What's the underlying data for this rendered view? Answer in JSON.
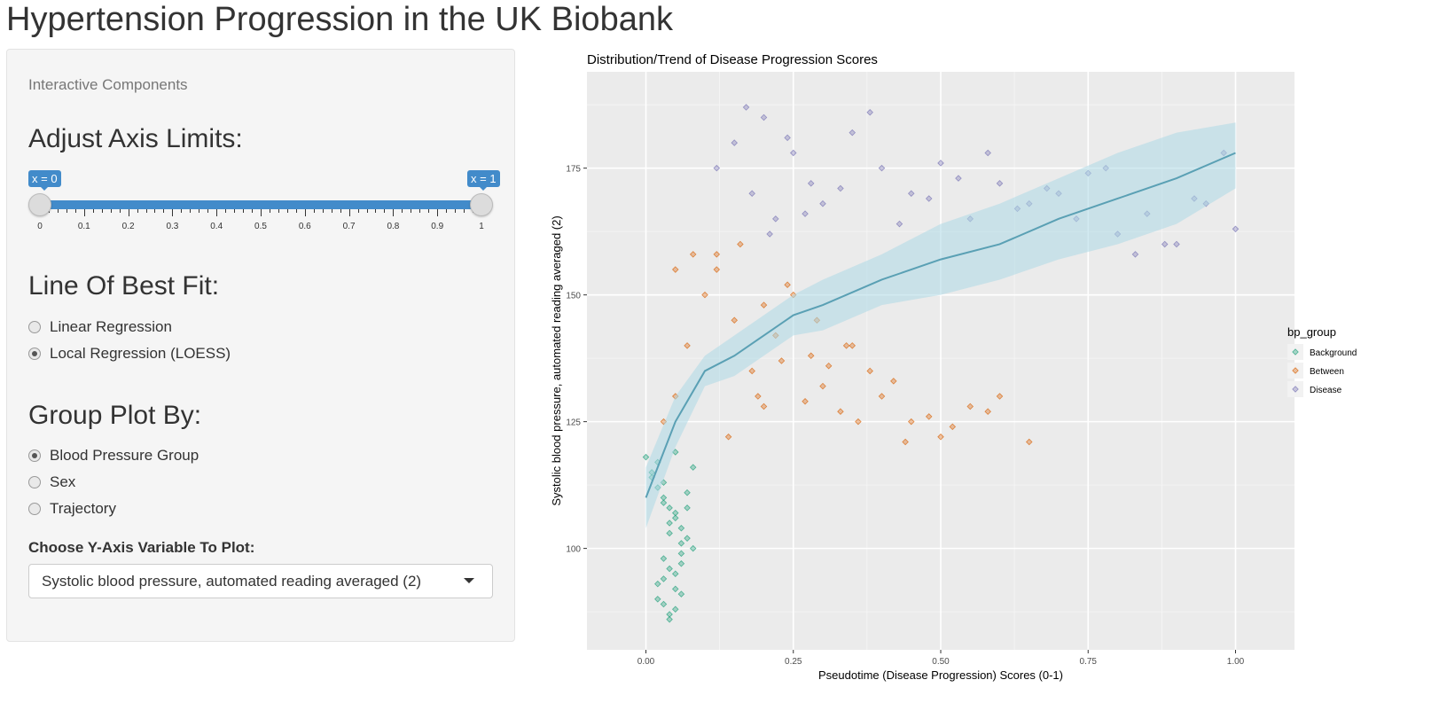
{
  "app": {
    "title": "Hypertension Progression in the UK Biobank"
  },
  "panel": {
    "subtitle": "Interactive Components",
    "axis_section": {
      "title": "Adjust Axis Limits:",
      "slider": {
        "min_label": "x = 0",
        "max_label": "x = 1",
        "value_min": 0,
        "value_max": 1,
        "ticks": [
          "0",
          "0.1",
          "0.2",
          "0.3",
          "0.4",
          "0.5",
          "0.6",
          "0.7",
          "0.8",
          "0.9",
          "1"
        ]
      }
    },
    "fit_section": {
      "title": "Line Of Best Fit:",
      "options": [
        {
          "label": "Linear Regression",
          "selected": false
        },
        {
          "label": "Local Regression (LOESS)",
          "selected": true
        }
      ]
    },
    "group_section": {
      "title": "Group Plot By:",
      "options": [
        {
          "label": "Blood Pressure Group",
          "selected": true
        },
        {
          "label": "Sex",
          "selected": false
        },
        {
          "label": "Trajectory",
          "selected": false
        }
      ]
    },
    "yvar": {
      "label": "Choose Y-Axis Variable To Plot:",
      "selected": "Systolic blood pressure, automated reading averaged (2)"
    }
  },
  "colors": {
    "background_group": "#1b9e77",
    "between_group": "#d95f02",
    "disease_group": "#7570b3",
    "fit_line": "#5aa0b4",
    "fit_band": "#add8e6",
    "panel_bg": "#ebebeb",
    "slider_accent": "#428bca"
  },
  "chart_data": {
    "type": "scatter",
    "title": "Distribution/Trend of Disease Progression Scores",
    "xlabel": "Pseudotime (Disease Progression) Scores (0-1)",
    "ylabel": "Systolic blood pressure, automated reading averaged (2)",
    "xlim": [
      -0.1,
      1.1
    ],
    "ylim": [
      80,
      194
    ],
    "x_ticks": [
      {
        "value": 0,
        "label": "0.00"
      },
      {
        "value": 0.25,
        "label": "0.25"
      },
      {
        "value": 0.5,
        "label": "0.50"
      },
      {
        "value": 0.75,
        "label": "0.75"
      },
      {
        "value": 1,
        "label": "1.00"
      }
    ],
    "y_ticks": [
      {
        "value": 100,
        "label": "100"
      },
      {
        "value": 125,
        "label": "125"
      },
      {
        "value": 150,
        "label": "150"
      },
      {
        "value": 175,
        "label": "175"
      }
    ],
    "grid": true,
    "legend": {
      "title": "bp_group",
      "position": "right",
      "entries": [
        "Background",
        "Between",
        "Disease"
      ]
    },
    "series": [
      {
        "name": "Background",
        "x": [
          0.0,
          0.01,
          0.02,
          0.03,
          0.04,
          0.05,
          0.06,
          0.07,
          0.08,
          0.03,
          0.04,
          0.05,
          0.02,
          0.06,
          0.03,
          0.05,
          0.04,
          0.06,
          0.07,
          0.03,
          0.02,
          0.05,
          0.04,
          0.06,
          0.03,
          0.05,
          0.07,
          0.04,
          0.06,
          0.08,
          0.01,
          0.03,
          0.05,
          0.02,
          0.04
        ],
        "y": [
          118,
          115,
          112,
          110,
          108,
          106,
          104,
          102,
          100,
          98,
          96,
          95,
          93,
          91,
          89,
          88,
          86,
          97,
          108,
          113,
          117,
          119,
          103,
          99,
          94,
          92,
          111,
          105,
          101,
          116,
          114,
          109,
          107,
          90,
          87
        ]
      },
      {
        "name": "Between",
        "x": [
          0.03,
          0.05,
          0.07,
          0.1,
          0.12,
          0.15,
          0.18,
          0.2,
          0.22,
          0.25,
          0.28,
          0.3,
          0.33,
          0.35,
          0.38,
          0.4,
          0.45,
          0.5,
          0.55,
          0.6,
          0.65,
          0.12,
          0.16,
          0.2,
          0.24,
          0.29,
          0.34,
          0.42,
          0.48,
          0.05,
          0.08,
          0.14,
          0.19,
          0.23,
          0.27,
          0.31,
          0.36,
          0.44,
          0.52,
          0.58
        ],
        "y": [
          125,
          130,
          140,
          150,
          155,
          145,
          135,
          128,
          142,
          150,
          138,
          132,
          127,
          140,
          135,
          130,
          125,
          122,
          128,
          130,
          121,
          158,
          160,
          148,
          152,
          145,
          140,
          133,
          126,
          155,
          158,
          122,
          130,
          137,
          129,
          136,
          125,
          121,
          124,
          127
        ]
      },
      {
        "name": "Disease",
        "x": [
          0.12,
          0.15,
          0.18,
          0.2,
          0.22,
          0.25,
          0.28,
          0.3,
          0.35,
          0.4,
          0.45,
          0.5,
          0.55,
          0.6,
          0.65,
          0.7,
          0.75,
          0.8,
          0.85,
          0.9,
          0.95,
          1.0,
          0.17,
          0.21,
          0.24,
          0.27,
          0.33,
          0.38,
          0.43,
          0.48,
          0.53,
          0.58,
          0.63,
          0.68,
          0.73,
          0.78,
          0.83,
          0.88,
          0.93,
          0.98
        ],
        "y": [
          175,
          180,
          170,
          185,
          165,
          178,
          172,
          168,
          182,
          175,
          170,
          176,
          165,
          172,
          168,
          170,
          174,
          162,
          166,
          160,
          168,
          163,
          187,
          162,
          181,
          166,
          171,
          186,
          164,
          169,
          173,
          178,
          167,
          171,
          165,
          175,
          158,
          160,
          169,
          178
        ]
      }
    ],
    "fit": {
      "method": "LOESS",
      "x": [
        0.0,
        0.05,
        0.1,
        0.15,
        0.2,
        0.25,
        0.3,
        0.4,
        0.5,
        0.6,
        0.7,
        0.8,
        0.9,
        1.0
      ],
      "y": [
        110,
        125,
        135,
        138,
        142,
        146,
        148,
        153,
        157,
        160,
        165,
        169,
        173,
        178
      ],
      "lower": [
        104,
        120,
        132,
        134,
        138,
        142,
        143,
        148,
        150,
        153,
        157,
        160,
        164,
        171
      ],
      "upper": [
        116,
        130,
        138,
        142,
        146,
        150,
        153,
        158,
        164,
        168,
        173,
        178,
        182,
        184
      ]
    }
  }
}
